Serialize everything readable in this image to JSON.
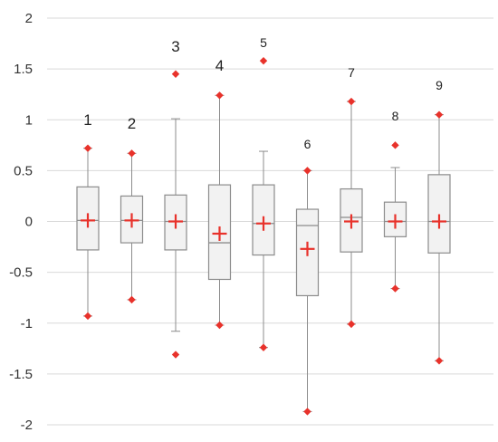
{
  "chart_data": {
    "type": "box",
    "title": "",
    "xlabel": "",
    "ylabel": "",
    "ylim": [
      -2,
      2
    ],
    "yticks": [
      2,
      1.5,
      1,
      0.5,
      0,
      -0.5,
      -1,
      -1.5,
      -2
    ],
    "ytick_labels": [
      "2",
      "1.5",
      "1",
      "0.5",
      "0",
      "-0.5",
      "-1",
      "-1.5",
      "-2"
    ],
    "grid": true,
    "colors": {
      "box_fill": "#f2f2f2",
      "box_stroke": "#8c8c8c",
      "whisker": "#8c8c8c",
      "marker": "#e8322b",
      "grid": "#d9d9d9"
    },
    "boxes": [
      {
        "label": "1",
        "q1": -0.28,
        "median": 0.01,
        "q3": 0.34,
        "mean": 0.01,
        "whisker_low": -0.93,
        "whisker_high": 0.72,
        "outliers": [
          0.72,
          -0.93
        ]
      },
      {
        "label": "2",
        "q1": -0.21,
        "median": 0.01,
        "q3": 0.25,
        "mean": 0.01,
        "whisker_low": -0.77,
        "whisker_high": 0.67,
        "outliers": [
          0.67,
          -0.77
        ]
      },
      {
        "label": "3",
        "q1": -0.28,
        "median": 0.0,
        "q3": 0.26,
        "mean": 0.0,
        "whisker_low": -1.08,
        "whisker_high": 1.01,
        "outliers": [
          1.45,
          -1.31
        ]
      },
      {
        "label": "4",
        "q1": -0.57,
        "median": -0.21,
        "q3": 0.36,
        "mean": -0.12,
        "whisker_low": -1.02,
        "whisker_high": 1.24,
        "outliers": [
          1.24,
          -1.02
        ]
      },
      {
        "label": "5",
        "q1": -0.33,
        "median": -0.02,
        "q3": 0.36,
        "mean": -0.02,
        "whisker_low": -1.24,
        "whisker_high": 0.69,
        "outliers": [
          1.58,
          -1.24
        ]
      },
      {
        "label": "6",
        "q1": -0.73,
        "median": -0.04,
        "q3": 0.12,
        "mean": -0.27,
        "whisker_low": -1.87,
        "whisker_high": 0.5,
        "outliers": [
          0.5,
          -1.87
        ]
      },
      {
        "label": "7",
        "q1": -0.3,
        "median": 0.04,
        "q3": 0.32,
        "mean": 0.0,
        "whisker_low": -1.01,
        "whisker_high": 1.18,
        "outliers": [
          1.18,
          -1.01
        ]
      },
      {
        "label": "8",
        "q1": -0.15,
        "median": 0.0,
        "q3": 0.19,
        "mean": 0.0,
        "whisker_low": -0.66,
        "whisker_high": 0.53,
        "outliers": [
          0.75,
          -0.66
        ]
      },
      {
        "label": "9",
        "q1": -0.31,
        "median": 0.0,
        "q3": 0.46,
        "mean": 0.0,
        "whisker_low": -1.37,
        "whisker_high": 1.05,
        "outliers": [
          1.05,
          -1.37
        ]
      }
    ]
  }
}
